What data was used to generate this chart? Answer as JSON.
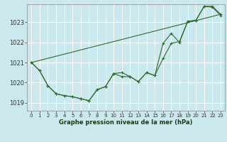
{
  "title": "Graphe pression niveau de la mer (hPa)",
  "background_color": "#cce8ef",
  "grid_color": "#ffffff",
  "line_color": "#2d6a2d",
  "xlim": [
    -0.5,
    23.5
  ],
  "ylim": [
    1018.6,
    1023.9
  ],
  "yticks": [
    1019,
    1020,
    1021,
    1022,
    1023
  ],
  "x_labels": [
    "0",
    "1",
    "2",
    "3",
    "4",
    "5",
    "6",
    "7",
    "8",
    "9",
    "10",
    "11",
    "12",
    "13",
    "14",
    "15",
    "16",
    "17",
    "18",
    "19",
    "20",
    "21",
    "22",
    "23"
  ],
  "line1_x": [
    0,
    1,
    2,
    3,
    4,
    5,
    6,
    7,
    8,
    9,
    10,
    11,
    12,
    13,
    14,
    15,
    16,
    17,
    18,
    19,
    20,
    21,
    22,
    23
  ],
  "line1_y": [
    1021.0,
    1020.6,
    1019.85,
    1019.45,
    1019.35,
    1019.3,
    1019.2,
    1019.1,
    1019.65,
    1019.8,
    1020.45,
    1020.5,
    1020.3,
    1020.05,
    1020.5,
    1020.35,
    1021.95,
    1022.45,
    1022.0,
    1023.05,
    1023.1,
    1023.8,
    1023.75,
    1023.35
  ],
  "line2_x": [
    0,
    1,
    2,
    3,
    4,
    5,
    6,
    7,
    8,
    9,
    10,
    11,
    12,
    13,
    14,
    15,
    16,
    17,
    18,
    19,
    20,
    21,
    22,
    23
  ],
  "line2_y": [
    1021.0,
    1020.6,
    1019.85,
    1019.45,
    1019.35,
    1019.3,
    1019.2,
    1019.1,
    1019.65,
    1019.8,
    1020.45,
    1020.3,
    1020.3,
    1020.05,
    1020.5,
    1020.35,
    1021.2,
    1021.95,
    1022.05,
    1023.05,
    1023.1,
    1023.8,
    1023.8,
    1023.4
  ],
  "line3_x": [
    0,
    23
  ],
  "line3_y": [
    1021.0,
    1023.4
  ],
  "ylabel_fontsize": 6,
  "xlabel_fontsize": 6,
  "tick_fontsize": 5
}
